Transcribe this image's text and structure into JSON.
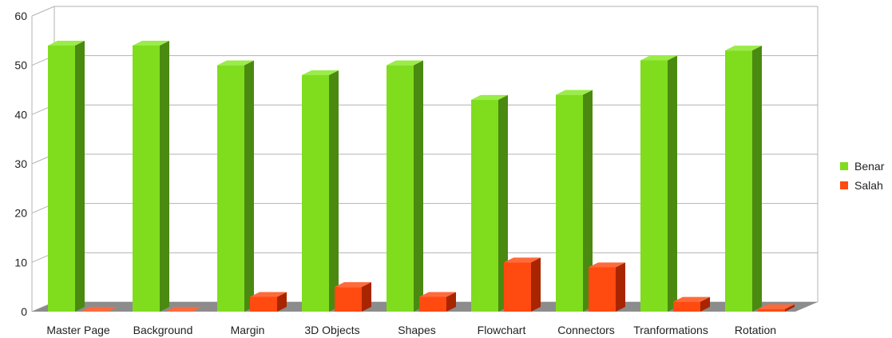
{
  "chart_data": {
    "type": "bar",
    "categories": [
      "Master Page",
      "Background",
      "Margin",
      "3D Objects",
      "Shapes",
      "Flowchart",
      "Connectors",
      "Tranformations",
      "Rotation"
    ],
    "series": [
      {
        "name": "Benar",
        "values": [
          54,
          54,
          50,
          48,
          50,
          43,
          44,
          51,
          53
        ],
        "color": "#7fdd1e",
        "side_color": "#4a8a10",
        "top_color": "#9aec48"
      },
      {
        "name": "Salah",
        "values": [
          0,
          0,
          3,
          5,
          3,
          10,
          9,
          2,
          0.5
        ],
        "color": "#ff4a10",
        "side_color": "#a82500",
        "top_color": "#ff6a3a"
      }
    ],
    "ylim": [
      0,
      60
    ],
    "yticks": [
      0,
      10,
      20,
      30,
      40,
      50,
      60
    ],
    "grid": true,
    "legend_position": "right"
  }
}
